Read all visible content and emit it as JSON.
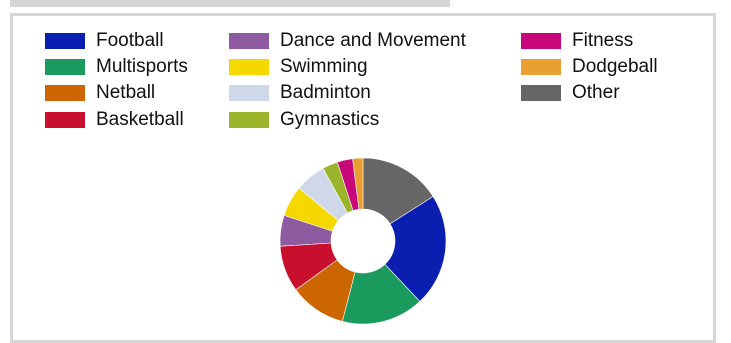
{
  "chart_data": {
    "type": "pie",
    "style": "donut",
    "legend_position": "top",
    "categories": [
      "Football",
      "Multisports",
      "Netball",
      "Basketball",
      "Dance and Movement",
      "Swimming",
      "Badminton",
      "Gymnastics",
      "Fitness",
      "Dodgeball",
      "Other"
    ],
    "values": [
      22,
      16,
      11,
      9,
      6,
      6,
      6,
      3,
      3,
      2,
      16
    ],
    "colors": [
      "#0a1fb0",
      "#1a9a5c",
      "#cc6600",
      "#c8102e",
      "#8e5aa0",
      "#f5d800",
      "#cfd8e8",
      "#9ab52c",
      "#c8087a",
      "#e8a030",
      "#666666"
    ],
    "start_angle_deg": 90,
    "direction": "clockwise",
    "slice_order": [
      10,
      0,
      1,
      2,
      3,
      4,
      5,
      6,
      7,
      8,
      9
    ]
  }
}
